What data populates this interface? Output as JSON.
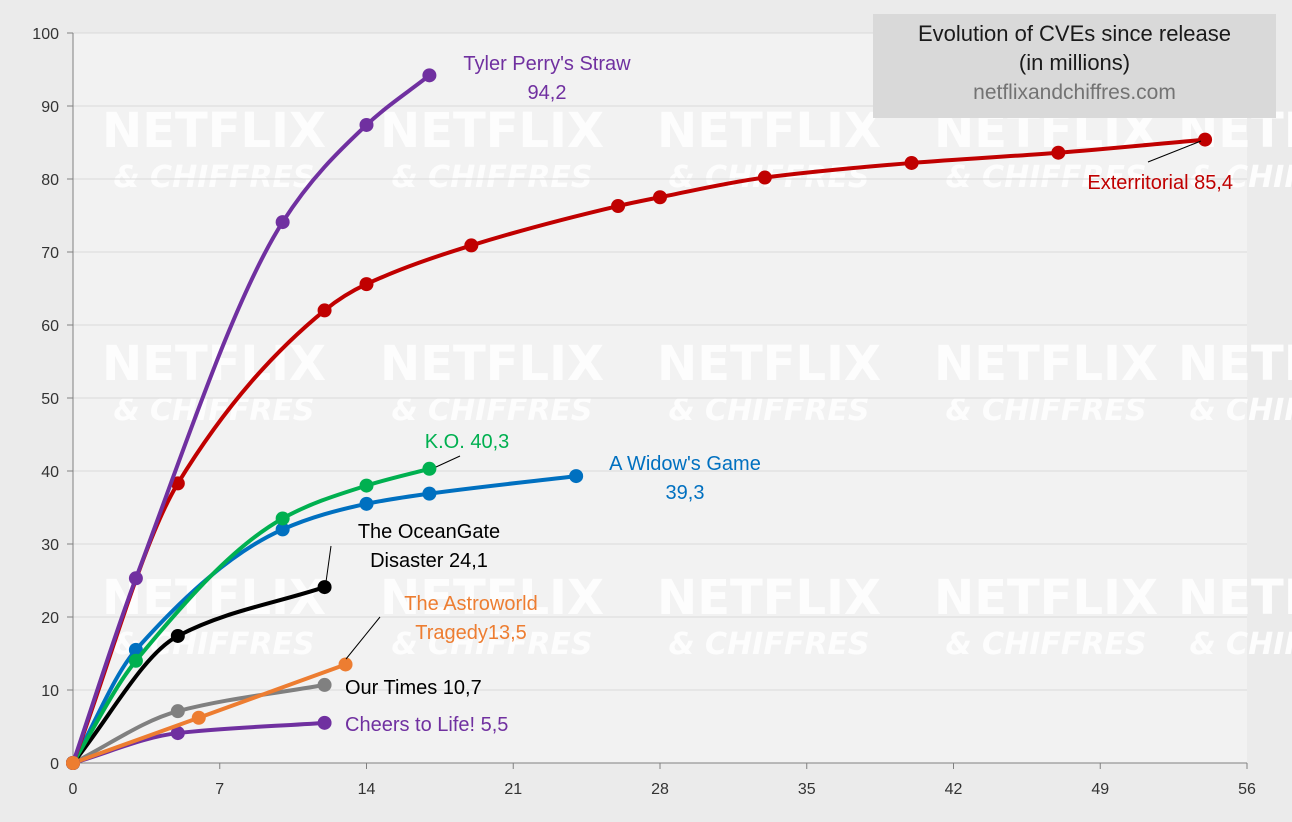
{
  "title": {
    "line1": "Evolution of CVEs since release",
    "line2": "(in millions)",
    "source": "netflixandchiffres.com"
  },
  "watermark": {
    "name": "NETFLIX",
    "sub": "& CHIFFRES"
  },
  "chart_data": {
    "type": "line",
    "title": "Evolution of CVEs since release (in millions)",
    "xlabel": "",
    "ylabel": "",
    "xlim": [
      0,
      56
    ],
    "ylim": [
      0,
      100
    ],
    "x_ticks": [
      0,
      7,
      14,
      21,
      28,
      35,
      42,
      49,
      56
    ],
    "y_ticks": [
      0,
      10,
      20,
      30,
      40,
      50,
      60,
      70,
      80,
      90,
      100
    ],
    "grid": "horizontal",
    "legend": "none",
    "series": [
      {
        "name": "Exterritorial",
        "color": "#c00000",
        "label": "Exterritorial 85,4",
        "points": [
          [
            0,
            0
          ],
          [
            5,
            38.3
          ],
          [
            12,
            62
          ],
          [
            14,
            65.6
          ],
          [
            19,
            70.9
          ],
          [
            26,
            76.3
          ],
          [
            28,
            77.5
          ],
          [
            33,
            80.2
          ],
          [
            40,
            82.2
          ],
          [
            47,
            83.6
          ],
          [
            54,
            85.4
          ]
        ]
      },
      {
        "name": "Tyler Perry's Straw",
        "color": "#7030a0",
        "label": "Tyler Perry's Straw\n94,2",
        "points": [
          [
            0,
            0
          ],
          [
            3,
            25.3
          ],
          [
            10,
            74.1
          ],
          [
            14,
            87.4
          ],
          [
            17,
            94.2
          ]
        ]
      },
      {
        "name": "K.O.",
        "color": "#00b050",
        "label": "K.O. 40,3",
        "points": [
          [
            0,
            0
          ],
          [
            3,
            14
          ],
          [
            10,
            33.5
          ],
          [
            14,
            38
          ],
          [
            17,
            40.3
          ]
        ]
      },
      {
        "name": "A Widow's Game",
        "color": "#0070c0",
        "label": "A Widow's Game\n39,3",
        "points": [
          [
            0,
            0
          ],
          [
            3,
            15.5
          ],
          [
            10,
            32
          ],
          [
            14,
            35.5
          ],
          [
            17,
            36.9
          ],
          [
            24,
            39.3
          ]
        ]
      },
      {
        "name": "The OceanGate Disaster",
        "color": "#000000",
        "label": "The OceanGate\nDisaster 24,1",
        "points": [
          [
            0,
            0
          ],
          [
            5,
            17.4
          ],
          [
            12,
            24.1
          ]
        ]
      },
      {
        "name": "The Astroworld Tragedy",
        "color": "#ed7d31",
        "label": "The Astroworld\nTragedy13,5",
        "points": [
          [
            0,
            0
          ],
          [
            6,
            6.2
          ],
          [
            13,
            13.5
          ]
        ]
      },
      {
        "name": "Our Times",
        "color": "#808080",
        "label": "Our Times 10,7",
        "points": [
          [
            0,
            0
          ],
          [
            5,
            7.1
          ],
          [
            12,
            10.7
          ]
        ]
      },
      {
        "name": "Cheers to Life!",
        "color": "#7030a0",
        "label": "Cheers to Life! 5,5",
        "points": [
          [
            0,
            0
          ],
          [
            5,
            4.1
          ],
          [
            12,
            5.5
          ]
        ]
      }
    ]
  }
}
